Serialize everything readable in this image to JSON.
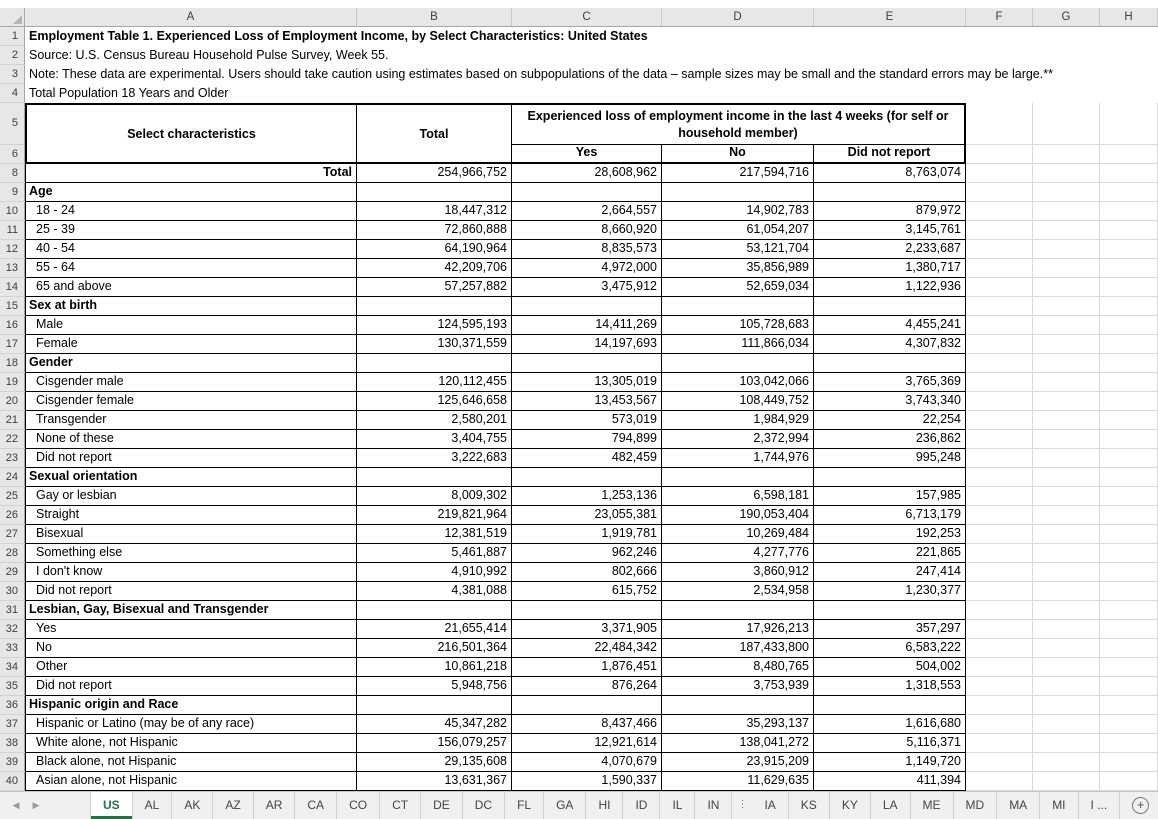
{
  "grid": {
    "column_letters": [
      "A",
      "B",
      "C",
      "D",
      "E",
      "F",
      "G",
      "H"
    ],
    "row_numbers": [
      "1",
      "2",
      "3",
      "4",
      "5",
      "6",
      "8",
      "9",
      "10",
      "11",
      "12",
      "13",
      "14",
      "15",
      "16",
      "17",
      "18",
      "19",
      "20",
      "21",
      "22",
      "23",
      "24",
      "25",
      "26",
      "27",
      "28",
      "29",
      "30",
      "31",
      "32",
      "33",
      "34",
      "35",
      "36",
      "37",
      "38",
      "39",
      "40"
    ]
  },
  "doc": {
    "title": "Employment Table 1. Experienced Loss of Employment Income, by Select Characteristics: United States",
    "source": "Source: U.S. Census Bureau Household Pulse Survey, Week 55.",
    "note": "Note: These data are experimental. Users should take caution using estimates based on subpopulations of the data – sample sizes may be small and the standard errors may be large.**",
    "subtitle": "Total Population 18 Years and Older"
  },
  "table": {
    "header": {
      "col_a": "Select characteristics",
      "col_b": "Total",
      "span": "Experienced loss of employment income in the last 4 weeks (for self or household member)",
      "sub": [
        "Yes",
        "No",
        "Did not report"
      ]
    },
    "rows": [
      {
        "type": "total",
        "label": "Total",
        "values": [
          "254,966,752",
          "28,608,962",
          "217,594,716",
          "8,763,074"
        ]
      },
      {
        "type": "section",
        "label": "Age",
        "values": [
          "",
          "",
          "",
          ""
        ]
      },
      {
        "type": "data",
        "label": "18 - 24",
        "values": [
          "18,447,312",
          "2,664,557",
          "14,902,783",
          "879,972"
        ]
      },
      {
        "type": "data",
        "label": "25 - 39",
        "values": [
          "72,860,888",
          "8,660,920",
          "61,054,207",
          "3,145,761"
        ]
      },
      {
        "type": "data",
        "label": "40 - 54",
        "values": [
          "64,190,964",
          "8,835,573",
          "53,121,704",
          "2,233,687"
        ]
      },
      {
        "type": "data",
        "label": "55 - 64",
        "values": [
          "42,209,706",
          "4,972,000",
          "35,856,989",
          "1,380,717"
        ]
      },
      {
        "type": "data",
        "label": "65 and above",
        "values": [
          "57,257,882",
          "3,475,912",
          "52,659,034",
          "1,122,936"
        ]
      },
      {
        "type": "section",
        "label": "Sex at birth",
        "values": [
          "",
          "",
          "",
          ""
        ]
      },
      {
        "type": "data",
        "label": "Male",
        "values": [
          "124,595,193",
          "14,411,269",
          "105,728,683",
          "4,455,241"
        ]
      },
      {
        "type": "data",
        "label": "Female",
        "values": [
          "130,371,559",
          "14,197,693",
          "111,866,034",
          "4,307,832"
        ]
      },
      {
        "type": "section",
        "label": "Gender",
        "values": [
          "",
          "",
          "",
          ""
        ]
      },
      {
        "type": "data",
        "label": "Cisgender male",
        "values": [
          "120,112,455",
          "13,305,019",
          "103,042,066",
          "3,765,369"
        ]
      },
      {
        "type": "data",
        "label": "Cisgender female",
        "values": [
          "125,646,658",
          "13,453,567",
          "108,449,752",
          "3,743,340"
        ]
      },
      {
        "type": "data",
        "label": "Transgender",
        "values": [
          "2,580,201",
          "573,019",
          "1,984,929",
          "22,254"
        ]
      },
      {
        "type": "data",
        "label": "None of these",
        "values": [
          "3,404,755",
          "794,899",
          "2,372,994",
          "236,862"
        ]
      },
      {
        "type": "data",
        "label": "Did not report",
        "values": [
          "3,222,683",
          "482,459",
          "1,744,976",
          "995,248"
        ]
      },
      {
        "type": "section",
        "label": "Sexual orientation",
        "values": [
          "",
          "",
          "",
          ""
        ]
      },
      {
        "type": "data",
        "label": "Gay or lesbian",
        "values": [
          "8,009,302",
          "1,253,136",
          "6,598,181",
          "157,985"
        ]
      },
      {
        "type": "data",
        "label": "Straight",
        "values": [
          "219,821,964",
          "23,055,381",
          "190,053,404",
          "6,713,179"
        ]
      },
      {
        "type": "data",
        "label": "Bisexual",
        "values": [
          "12,381,519",
          "1,919,781",
          "10,269,484",
          "192,253"
        ]
      },
      {
        "type": "data",
        "label": "Something else",
        "values": [
          "5,461,887",
          "962,246",
          "4,277,776",
          "221,865"
        ]
      },
      {
        "type": "data",
        "label": "I don't know",
        "values": [
          "4,910,992",
          "802,666",
          "3,860,912",
          "247,414"
        ]
      },
      {
        "type": "data",
        "label": "Did not report",
        "values": [
          "4,381,088",
          "615,752",
          "2,534,958",
          "1,230,377"
        ]
      },
      {
        "type": "section",
        "label": "Lesbian, Gay, Bisexual and Transgender",
        "values": [
          "",
          "",
          "",
          ""
        ]
      },
      {
        "type": "data",
        "label": "Yes",
        "values": [
          "21,655,414",
          "3,371,905",
          "17,926,213",
          "357,297"
        ]
      },
      {
        "type": "data",
        "label": "No",
        "values": [
          "216,501,364",
          "22,484,342",
          "187,433,800",
          "6,583,222"
        ]
      },
      {
        "type": "data",
        "label": "Other",
        "values": [
          "10,861,218",
          "1,876,451",
          "8,480,765",
          "504,002"
        ]
      },
      {
        "type": "data",
        "label": "Did not report",
        "values": [
          "5,948,756",
          "876,264",
          "3,753,939",
          "1,318,553"
        ]
      },
      {
        "type": "section",
        "label": "Hispanic origin and Race",
        "values": [
          "",
          "",
          "",
          ""
        ]
      },
      {
        "type": "data",
        "label": "Hispanic or Latino (may be of any race)",
        "values": [
          "45,347,282",
          "8,437,466",
          "35,293,137",
          "1,616,680"
        ]
      },
      {
        "type": "data",
        "label": "White alone, not Hispanic",
        "values": [
          "156,079,257",
          "12,921,614",
          "138,041,272",
          "5,116,371"
        ]
      },
      {
        "type": "data",
        "label": "Black alone, not Hispanic",
        "values": [
          "29,135,608",
          "4,070,679",
          "23,915,209",
          "1,149,720"
        ]
      },
      {
        "type": "data",
        "label": "Asian alone, not Hispanic",
        "values": [
          "13,631,367",
          "1,590,337",
          "11,629,635",
          "411,394"
        ]
      }
    ]
  },
  "tabs": {
    "nav_left": "◀",
    "nav_right": "▶",
    "sheets": [
      "US",
      "AL",
      "AK",
      "AZ",
      "AR",
      "CA",
      "CO",
      "CT",
      "DE",
      "DC",
      "FL",
      "GA",
      "HI",
      "ID",
      "IL",
      "IN",
      "⋮",
      "IA",
      "KS",
      "KY",
      "LA",
      "ME",
      "MD",
      "MA",
      "MI",
      "I ..."
    ],
    "active": "US",
    "add_label": "+"
  },
  "colors": {
    "accent_green": "#217346"
  }
}
